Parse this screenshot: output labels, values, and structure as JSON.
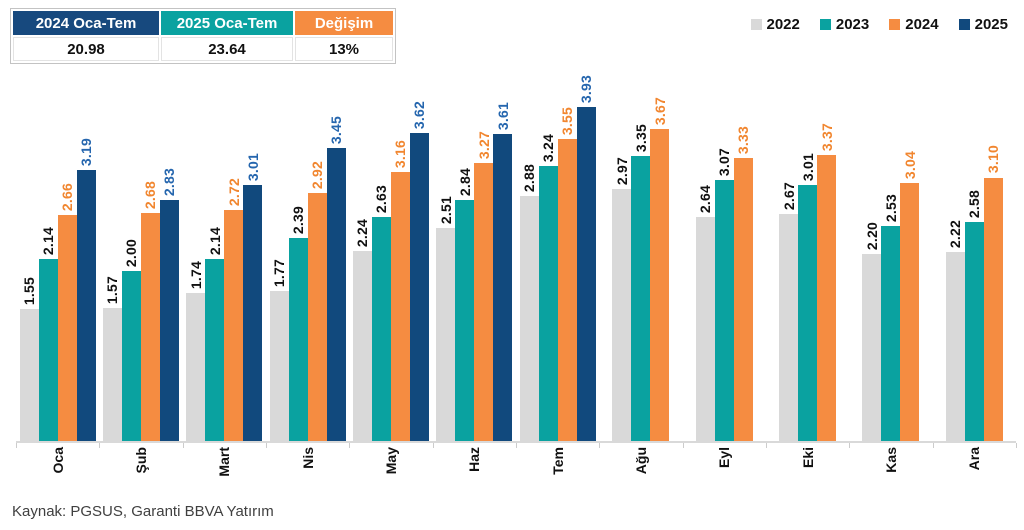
{
  "summary_table": {
    "columns": [
      {
        "label": "2024 Oca-Tem",
        "value": "20.98",
        "header_color": "#17497E"
      },
      {
        "label": "2025 Oca-Tem",
        "value": "23.64",
        "header_color": "#0AA2A0"
      },
      {
        "label": "Değişim",
        "value": "13%",
        "header_color": "#F58C41"
      }
    ]
  },
  "chart_data": {
    "type": "bar",
    "title": "",
    "xlabel": "",
    "ylabel": "",
    "grid": false,
    "legend_position": "top-right",
    "value_labels": true,
    "ylim": [
      0,
      4.3
    ],
    "categories": [
      "Oca",
      "Şub",
      "Mart",
      "Nis",
      "May",
      "Haz",
      "Tem",
      "Ağu",
      "Eyl",
      "Eki",
      "Kas",
      "Ara"
    ],
    "series": [
      {
        "name": "2022",
        "color": "#D9D9D9",
        "label_color": "#111111",
        "values": [
          1.55,
          1.57,
          1.74,
          1.77,
          2.24,
          2.51,
          2.88,
          2.97,
          2.64,
          2.67,
          2.2,
          2.22
        ]
      },
      {
        "name": "2023",
        "color": "#0AA2A0",
        "label_color": "#111111",
        "values": [
          2.14,
          2.0,
          2.14,
          2.39,
          2.63,
          2.84,
          3.24,
          3.35,
          3.07,
          3.01,
          2.53,
          2.58
        ]
      },
      {
        "name": "2024",
        "color": "#F58C41",
        "label_color": "#F1862F",
        "values": [
          2.66,
          2.68,
          2.72,
          2.92,
          3.16,
          3.27,
          3.55,
          3.67,
          3.33,
          3.37,
          3.04,
          3.1
        ]
      },
      {
        "name": "2025",
        "color": "#11497D",
        "label_color": "#2566AE",
        "values": [
          3.19,
          2.83,
          3.01,
          3.45,
          3.62,
          3.61,
          3.93,
          null,
          null,
          null,
          null,
          null
        ]
      }
    ]
  },
  "source_note": "Kaynak: PGSUS, Garanti BBVA Yatırım"
}
